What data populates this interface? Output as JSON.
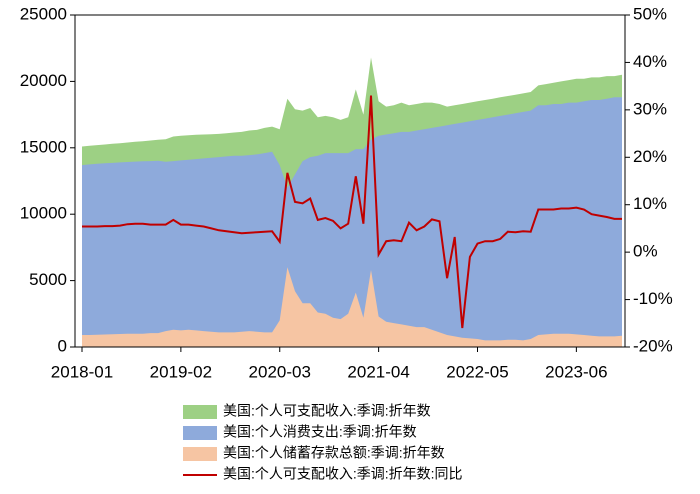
{
  "chart_data": {
    "type": "area",
    "x": [
      "2018-01",
      null,
      null,
      null,
      null,
      null,
      null,
      null,
      null,
      null,
      null,
      null,
      null,
      "2019-02",
      null,
      null,
      null,
      null,
      null,
      null,
      null,
      null,
      null,
      null,
      null,
      null,
      "2020-03",
      null,
      null,
      null,
      null,
      null,
      null,
      null,
      null,
      null,
      null,
      null,
      null,
      "2021-04",
      null,
      null,
      null,
      null,
      null,
      null,
      null,
      null,
      null,
      null,
      null,
      null,
      "2022-05",
      null,
      null,
      null,
      null,
      null,
      null,
      null,
      null,
      null,
      null,
      null,
      null,
      "2023-06",
      null,
      null,
      null,
      null,
      null,
      null
    ],
    "ylim": [
      0,
      25000
    ],
    "yticks": [
      0,
      5000,
      10000,
      15000,
      20000,
      25000
    ],
    "y2lim": [
      -20,
      50
    ],
    "y2ticks": [
      {
        "value": -20,
        "label": "-20%"
      },
      {
        "value": -10,
        "label": "-10%"
      },
      {
        "value": 0,
        "label": "0%"
      },
      {
        "value": 10,
        "label": "10%"
      },
      {
        "value": 20,
        "label": "20%"
      },
      {
        "value": 30,
        "label": "30%"
      },
      {
        "value": 40,
        "label": "40%"
      },
      {
        "value": 50,
        "label": "50%"
      }
    ],
    "series": [
      {
        "name": "美国:个人可支配收入:季调:折年数",
        "type": "area",
        "color": "#9dd084",
        "values": [
          15100,
          15150,
          15200,
          15250,
          15300,
          15350,
          15400,
          15450,
          15500,
          15550,
          15600,
          15650,
          15850,
          15900,
          15950,
          15980,
          16000,
          16020,
          16050,
          16100,
          16150,
          16200,
          16300,
          16350,
          16500,
          16600,
          16400,
          18700,
          17900,
          17800,
          18000,
          17300,
          17400,
          17300,
          17100,
          17300,
          19400,
          17500,
          21800,
          18500,
          18100,
          18200,
          18400,
          18200,
          18300,
          18400,
          18400,
          18300,
          18100,
          18200,
          18300,
          18400,
          18500,
          18600,
          18700,
          18800,
          18900,
          19000,
          19100,
          19200,
          19700,
          19800,
          19900,
          20000,
          20100,
          20200,
          20200,
          20300,
          20300,
          20400,
          20400,
          20500
        ]
      },
      {
        "name": "美国:个人消费支出:季调:折年数",
        "type": "area",
        "color": "#8eaadb",
        "values": [
          13700,
          13750,
          13800,
          13830,
          13860,
          13900,
          13930,
          13960,
          13990,
          14000,
          14020,
          13950,
          14000,
          14050,
          14100,
          14150,
          14200,
          14250,
          14300,
          14350,
          14400,
          14400,
          14450,
          14500,
          14600,
          14700,
          13700,
          12000,
          13000,
          14000,
          14300,
          14400,
          14600,
          14600,
          14600,
          14600,
          14900,
          14900,
          15600,
          15900,
          16000,
          16100,
          16200,
          16200,
          16300,
          16400,
          16500,
          16600,
          16700,
          16800,
          16900,
          17000,
          17100,
          17200,
          17300,
          17400,
          17500,
          17600,
          17700,
          17800,
          18200,
          18200,
          18300,
          18300,
          18400,
          18400,
          18500,
          18600,
          18600,
          18700,
          18800,
          18800
        ]
      },
      {
        "name": "美国:个人储蓄存款总额:季调:折年数",
        "type": "area",
        "color": "#f6c5a3",
        "values": [
          900,
          900,
          920,
          940,
          960,
          980,
          1000,
          1000,
          1000,
          1050,
          1050,
          1200,
          1300,
          1250,
          1300,
          1250,
          1200,
          1150,
          1100,
          1100,
          1100,
          1150,
          1200,
          1150,
          1100,
          1100,
          2000,
          6000,
          4200,
          3300,
          3300,
          2600,
          2500,
          2200,
          2100,
          2500,
          4100,
          2200,
          5800,
          2300,
          1900,
          1800,
          1700,
          1600,
          1500,
          1500,
          1300,
          1100,
          900,
          800,
          700,
          650,
          600,
          500,
          500,
          500,
          550,
          550,
          500,
          600,
          900,
          950,
          1000,
          1000,
          1000,
          950,
          900,
          850,
          800,
          800,
          800,
          850
        ]
      },
      {
        "name": "美国:个人可支配收入:季调:折年数:同比",
        "type": "line",
        "axis": "y2",
        "color": "#c00000",
        "values": [
          5.4,
          5.4,
          5.4,
          5.5,
          5.5,
          5.6,
          5.9,
          6.0,
          6.0,
          5.8,
          5.8,
          5.8,
          6.8,
          5.8,
          5.8,
          5.6,
          5.4,
          5.0,
          4.6,
          4.4,
          4.2,
          4.0,
          4.1,
          4.2,
          4.3,
          4.4,
          2.2,
          16.7,
          10.6,
          10.3,
          11.3,
          6.8,
          7.2,
          6.6,
          5.0,
          6.0,
          16.0,
          6.0,
          33.0,
          -0.5,
          2.3,
          2.5,
          2.3,
          6.2,
          4.6,
          5.4,
          6.9,
          6.5,
          -5.5,
          3.2,
          -16.0,
          -1.0,
          1.8,
          2.3,
          2.3,
          2.8,
          4.3,
          4.2,
          4.4,
          4.3,
          9.0,
          9.0,
          9.0,
          9.2,
          9.2,
          9.4,
          9.0,
          8.0,
          7.7,
          7.4,
          7.0,
          7.0
        ]
      }
    ]
  }
}
